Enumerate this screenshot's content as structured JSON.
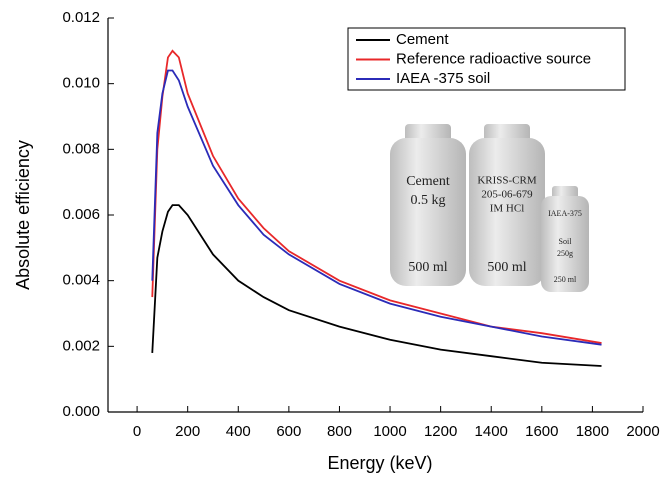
{
  "chart_data": {
    "type": "line",
    "x_label": "Energy (keV)",
    "y_label": "Absolute efficiency",
    "x": [
      60,
      80,
      100,
      122,
      140,
      165,
      200,
      300,
      400,
      500,
      600,
      800,
      1000,
      1200,
      1400,
      1600,
      1836
    ],
    "series": [
      {
        "name": "Cement",
        "color": "#000000",
        "values": [
          0.0018,
          0.0047,
          0.0055,
          0.0061,
          0.0063,
          0.0063,
          0.006,
          0.0048,
          0.004,
          0.0035,
          0.0031,
          0.0026,
          0.0022,
          0.0019,
          0.0017,
          0.0015,
          0.0014
        ]
      },
      {
        "name": "Reference radioactive source",
        "color": "#e8282a",
        "values": [
          0.0035,
          0.008,
          0.0096,
          0.0108,
          0.011,
          0.0108,
          0.0097,
          0.0078,
          0.0065,
          0.0056,
          0.0049,
          0.004,
          0.0034,
          0.003,
          0.0026,
          0.0024,
          0.0021
        ]
      },
      {
        "name": "IAEA -375 soil",
        "color": "#2b2bb8",
        "values": [
          0.004,
          0.0085,
          0.0097,
          0.0104,
          0.0104,
          0.0101,
          0.0093,
          0.0075,
          0.0063,
          0.0054,
          0.0048,
          0.0039,
          0.0033,
          0.0029,
          0.0026,
          0.0023,
          0.00205
        ]
      }
    ],
    "xlim": [
      -115,
      2000
    ],
    "xticks": [
      0,
      200,
      400,
      600,
      800,
      1000,
      1200,
      1400,
      1600,
      1800,
      2000
    ],
    "ylim": [
      0,
      0.012
    ],
    "yticks": [
      {
        "value": 0,
        "label": "0.000"
      },
      0.002,
      0.004,
      0.006,
      0.008,
      {
        "value": 0.01,
        "label": "0.010"
      },
      {
        "value": 0.012,
        "label": "0.012"
      }
    ],
    "legend": "top-right",
    "inset_labels": {
      "bottle_1": [
        "Cement",
        "0.5 kg",
        "500 ml"
      ],
      "bottle_2": [
        "KRISS-CRM",
        "205-06-679",
        "IM HCl",
        "500 ml"
      ],
      "bottle_3": [
        "IAEA-375",
        "Soil",
        "250g",
        "250 ml"
      ]
    }
  }
}
